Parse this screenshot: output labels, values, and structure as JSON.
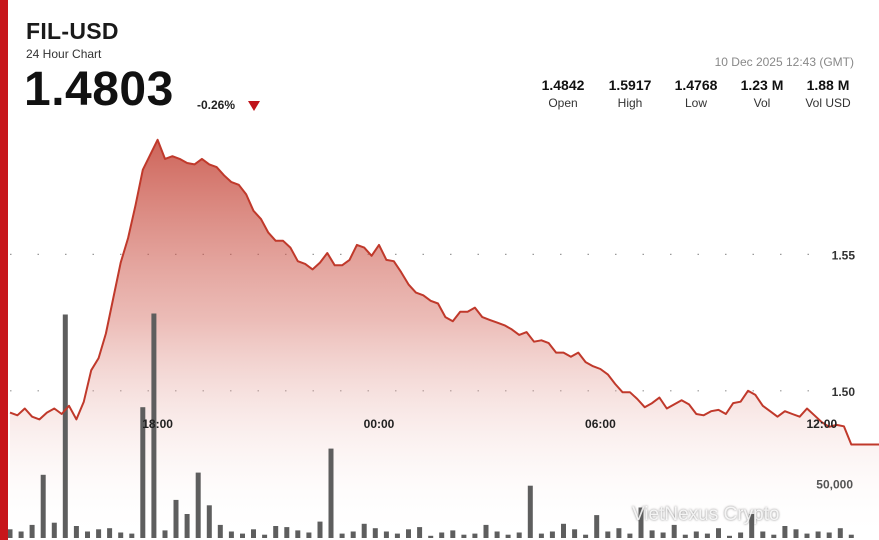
{
  "header": {
    "pair": "FIL-USD",
    "subtitle": "24 Hour Chart",
    "price": "1.4803",
    "change": "-0.26%",
    "timestamp": "10 Dec 2025 12:43 (GMT)"
  },
  "stats": [
    {
      "value": "1.4842",
      "label": "Open"
    },
    {
      "value": "1.5917",
      "label": "High"
    },
    {
      "value": "1.4768",
      "label": "Low"
    },
    {
      "value": "1.23 M",
      "label": "Vol"
    },
    {
      "value": "1.88 M",
      "label": "Vol USD"
    }
  ],
  "watermark": "VietNexus Crypto",
  "colors": {
    "accent": "#c7161b",
    "line": "#c0392b",
    "area": "#c0392b",
    "volume": "#5e5e5e"
  },
  "chart_data": {
    "type": "area",
    "title": "",
    "x_tick_labels": [
      "18:00",
      "00:00",
      "06:00",
      "12:00"
    ],
    "x_ticks": [
      4.0,
      10.0,
      16.0,
      22.0
    ],
    "y_ticks": [
      1.5,
      1.55
    ],
    "y_tick_labels": [
      "1.50",
      "1.55"
    ],
    "ylim": [
      1.4453,
      1.6286
    ],
    "grid": "dotted-horizontal",
    "price_series": {
      "name": "Price",
      "x": [
        0.0,
        0.2,
        0.4,
        0.6,
        0.8,
        1.0,
        1.2,
        1.4,
        1.6,
        1.8,
        2.0,
        2.2,
        2.4,
        2.6,
        2.8,
        3.0,
        3.2,
        3.4,
        3.6,
        3.8,
        4.0,
        4.2,
        4.4,
        4.6,
        4.8,
        5.0,
        5.2,
        5.4,
        5.6,
        5.8,
        6.0,
        6.2,
        6.4,
        6.6,
        6.8,
        7.0,
        7.2,
        7.4,
        7.6,
        7.8,
        8.0,
        8.2,
        8.4,
        8.6,
        8.8,
        9.0,
        9.2,
        9.4,
        9.6,
        9.8,
        10.0,
        10.2,
        10.4,
        10.6,
        10.8,
        11.0,
        11.2,
        11.4,
        11.6,
        11.8,
        12.0,
        12.2,
        12.4,
        12.6,
        12.8,
        13.0,
        13.2,
        13.4,
        13.6,
        13.8,
        14.0,
        14.2,
        14.4,
        14.6,
        14.8,
        15.0,
        15.2,
        15.4,
        15.6,
        15.8,
        16.0,
        16.2,
        16.4,
        16.6,
        16.8,
        17.0,
        17.2,
        17.4,
        17.6,
        17.8,
        18.0,
        18.2,
        18.4,
        18.6,
        18.8,
        19.0,
        19.2,
        19.4,
        19.6,
        19.8,
        20.0,
        20.2,
        20.4,
        20.6,
        20.8,
        21.0,
        21.2,
        21.4,
        21.6,
        21.8,
        22.0,
        22.2,
        22.4,
        22.6,
        22.8
      ],
      "values": [
        1.492,
        1.491,
        1.4935,
        1.4905,
        1.4895,
        1.492,
        1.4935,
        1.4915,
        1.4945,
        1.4895,
        1.496,
        1.5075,
        1.512,
        1.521,
        1.534,
        1.547,
        1.556,
        1.568,
        1.581,
        1.5865,
        1.592,
        1.585,
        1.586,
        1.585,
        1.5835,
        1.583,
        1.585,
        1.583,
        1.582,
        1.579,
        1.5765,
        1.5755,
        1.572,
        1.566,
        1.563,
        1.558,
        1.555,
        1.555,
        1.5525,
        1.5475,
        1.5465,
        1.5445,
        1.547,
        1.5505,
        1.546,
        1.546,
        1.548,
        1.5535,
        1.5525,
        1.5495,
        1.5535,
        1.548,
        1.5475,
        1.5435,
        1.539,
        1.536,
        1.535,
        1.533,
        1.532,
        1.527,
        1.5255,
        1.529,
        1.529,
        1.5305,
        1.527,
        1.526,
        1.525,
        1.524,
        1.5225,
        1.5205,
        1.5215,
        1.518,
        1.5185,
        1.5175,
        1.514,
        1.514,
        1.5125,
        1.514,
        1.5105,
        1.509,
        1.508,
        1.506,
        1.5025,
        1.4995,
        1.4995,
        1.497,
        1.494,
        1.4955,
        1.4975,
        1.4935,
        1.495,
        1.4965,
        1.495,
        1.4915,
        1.491,
        1.4925,
        1.493,
        1.4915,
        1.4955,
        1.496,
        1.5,
        1.4985,
        1.4945,
        1.4925,
        1.4905,
        1.4925,
        1.4915,
        1.4905,
        1.4935,
        1.491,
        1.4885,
        1.4868,
        1.4875,
        1.487,
        1.4803
      ]
    },
    "volume_series": {
      "name": "Volume",
      "marker_label": "50,000",
      "marker_value": 50000,
      "ylim": [
        0,
        214000
      ],
      "x": [
        0.0,
        0.3,
        0.6,
        0.9,
        1.2,
        1.5,
        1.8,
        2.1,
        2.4,
        2.7,
        3.0,
        3.3,
        3.6,
        3.9,
        4.2,
        4.5,
        4.8,
        5.1,
        5.4,
        5.7,
        6.0,
        6.3,
        6.6,
        6.9,
        7.2,
        7.5,
        7.8,
        8.1,
        8.4,
        8.7,
        9.0,
        9.3,
        9.6,
        9.9,
        10.2,
        10.5,
        10.8,
        11.1,
        11.4,
        11.7,
        12.0,
        12.3,
        12.6,
        12.9,
        13.2,
        13.5,
        13.8,
        14.1,
        14.4,
        14.7,
        15.0,
        15.3,
        15.6,
        15.9,
        16.2,
        16.5,
        16.8,
        17.1,
        17.4,
        17.7,
        18.0,
        18.3,
        18.6,
        18.9,
        19.2,
        19.5,
        19.8,
        20.1,
        20.4,
        20.7,
        21.0,
        21.3,
        21.6,
        21.9,
        22.2,
        22.5,
        22.8
      ],
      "values": [
        8000,
        6000,
        12000,
        58000,
        14000,
        205000,
        11000,
        6000,
        8000,
        9000,
        5000,
        4000,
        120000,
        206000,
        7000,
        35000,
        22000,
        60000,
        30000,
        12000,
        6000,
        4000,
        8000,
        3000,
        11000,
        10000,
        7000,
        5000,
        15000,
        82000,
        4000,
        6000,
        13000,
        9000,
        6000,
        4000,
        8000,
        10000,
        2000,
        5000,
        7000,
        3000,
        4000,
        12000,
        6000,
        3000,
        5000,
        48000,
        4000,
        6000,
        13000,
        8000,
        3000,
        21000,
        6000,
        9000,
        4000,
        28000,
        7000,
        5000,
        12000,
        3000,
        6000,
        4000,
        9000,
        2000,
        5000,
        22000,
        6000,
        3000,
        11000,
        8000,
        4000,
        6000,
        5000,
        9000,
        3000
      ]
    }
  }
}
